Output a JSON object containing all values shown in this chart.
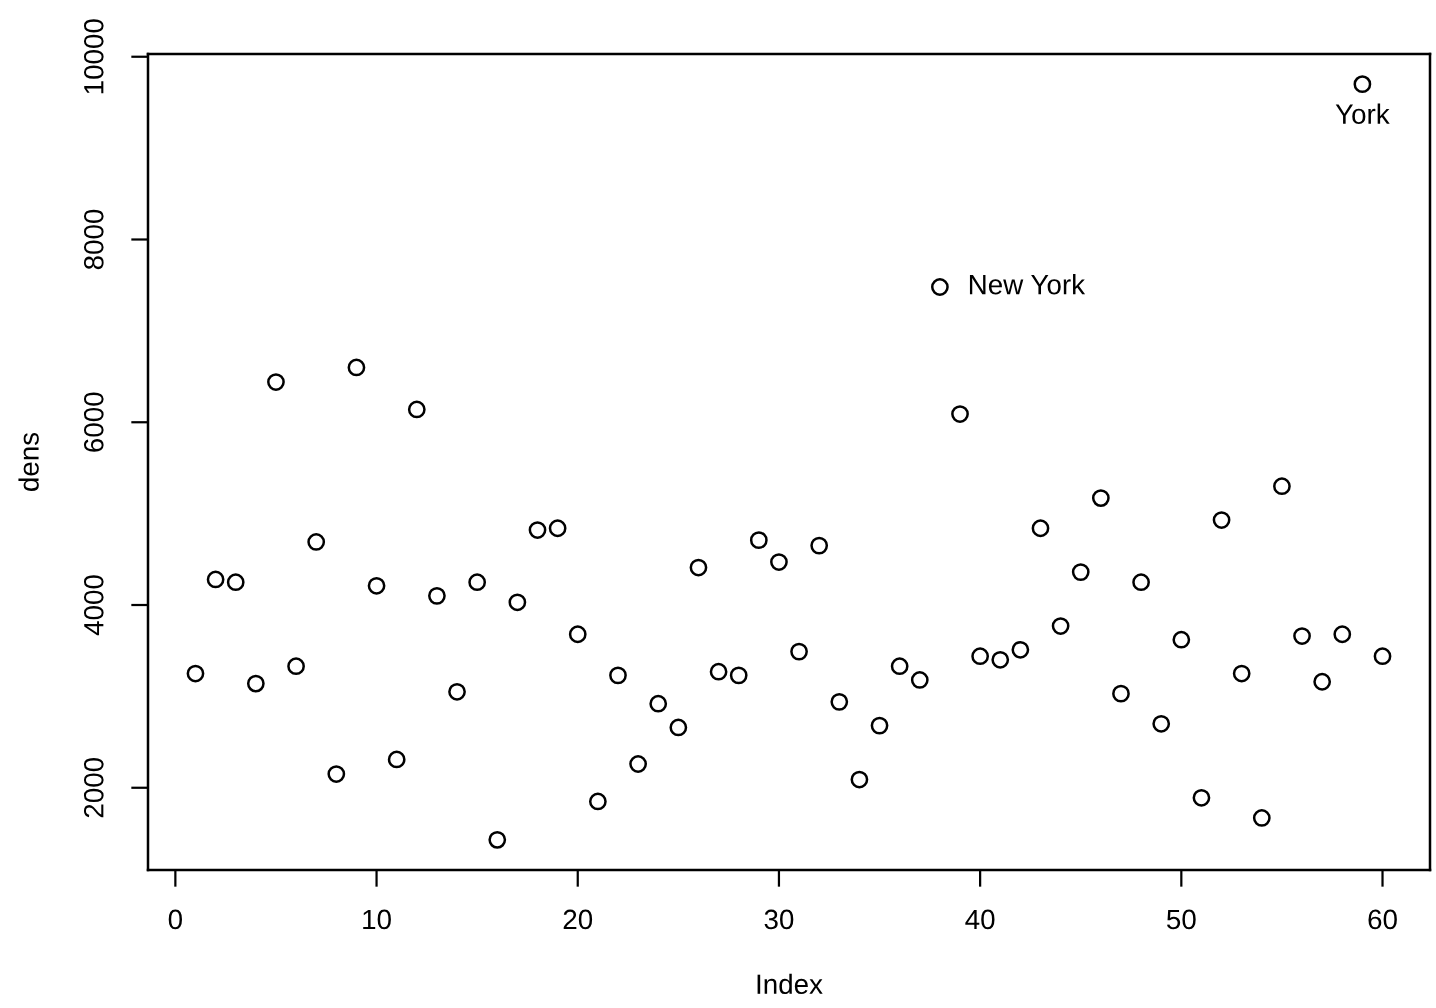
{
  "chart_data": {
    "type": "scatter",
    "xlabel": "Index",
    "ylabel": "dens",
    "x": [
      1,
      2,
      3,
      4,
      5,
      6,
      7,
      8,
      9,
      10,
      11,
      12,
      13,
      14,
      15,
      16,
      17,
      18,
      19,
      20,
      21,
      22,
      23,
      24,
      25,
      26,
      27,
      28,
      29,
      30,
      31,
      32,
      33,
      34,
      35,
      36,
      37,
      38,
      39,
      40,
      41,
      42,
      43,
      44,
      45,
      46,
      47,
      48,
      49,
      50,
      51,
      52,
      53,
      54,
      55,
      56,
      57,
      58,
      59,
      60
    ],
    "values": [
      3250,
      4280,
      4250,
      3140,
      6440,
      3330,
      4690,
      2150,
      6600,
      4210,
      2310,
      6140,
      4100,
      3050,
      4250,
      1430,
      4030,
      4820,
      4840,
      3680,
      1850,
      3230,
      2260,
      2920,
      2660,
      4410,
      3270,
      3230,
      4710,
      4470,
      3490,
      4650,
      2940,
      2090,
      2680,
      3330,
      3180,
      7480,
      6090,
      3440,
      3400,
      3510,
      4840,
      3770,
      4360,
      5170,
      3030,
      4250,
      2700,
      3620,
      1890,
      4930,
      3250,
      1670,
      5300,
      3660,
      3160,
      3680,
      9700,
      3440
    ],
    "color": "#000000",
    "marker": "circle",
    "grid": false,
    "legend": false,
    "xlim": [
      -1.36,
      62.36
    ],
    "ylim": [
      1100,
      10030
    ],
    "xticks": [
      0,
      10,
      20,
      30,
      40,
      50,
      60
    ],
    "yticks": [
      2000,
      4000,
      6000,
      8000,
      10000
    ],
    "annotations": [
      {
        "text": "New York",
        "x": 38,
        "y": 7480
      },
      {
        "text": "York",
        "x": 59,
        "y": 9700
      }
    ]
  }
}
